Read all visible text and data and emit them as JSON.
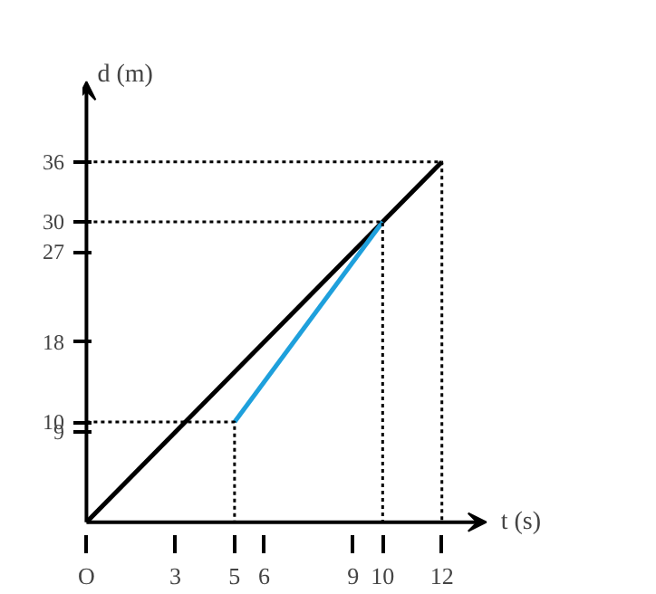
{
  "chart_data": {
    "type": "line",
    "xlabel": "t (s)",
    "ylabel": "d (m)",
    "xlim": [
      0,
      13.5
    ],
    "ylim": [
      0,
      44
    ],
    "xticks": [
      {
        "value": 0,
        "label": "O"
      },
      3,
      5,
      6,
      9,
      10,
      12
    ],
    "yticks": [
      9,
      10,
      18,
      27,
      30,
      36
    ],
    "grid": false,
    "marker": "none",
    "series": [
      {
        "color": "#000000",
        "x": [
          0,
          12
        ],
        "values": [
          0,
          36
        ],
        "line_style": "solid"
      },
      {
        "color": "#1ea0dc",
        "x": [
          5,
          10
        ],
        "values": [
          10,
          30
        ],
        "line_style": "solid"
      },
      {
        "color": "#000000",
        "x": [
          0,
          12,
          12
        ],
        "values": [
          36,
          36,
          0
        ],
        "line_style": "dotted"
      },
      {
        "color": "#000000",
        "x": [
          0,
          10,
          10
        ],
        "values": [
          30,
          30,
          0
        ],
        "line_style": "dotted"
      },
      {
        "color": "#000000",
        "x": [
          0,
          5,
          5
        ],
        "values": [
          10,
          10,
          0
        ],
        "line_style": "dotted"
      }
    ]
  }
}
